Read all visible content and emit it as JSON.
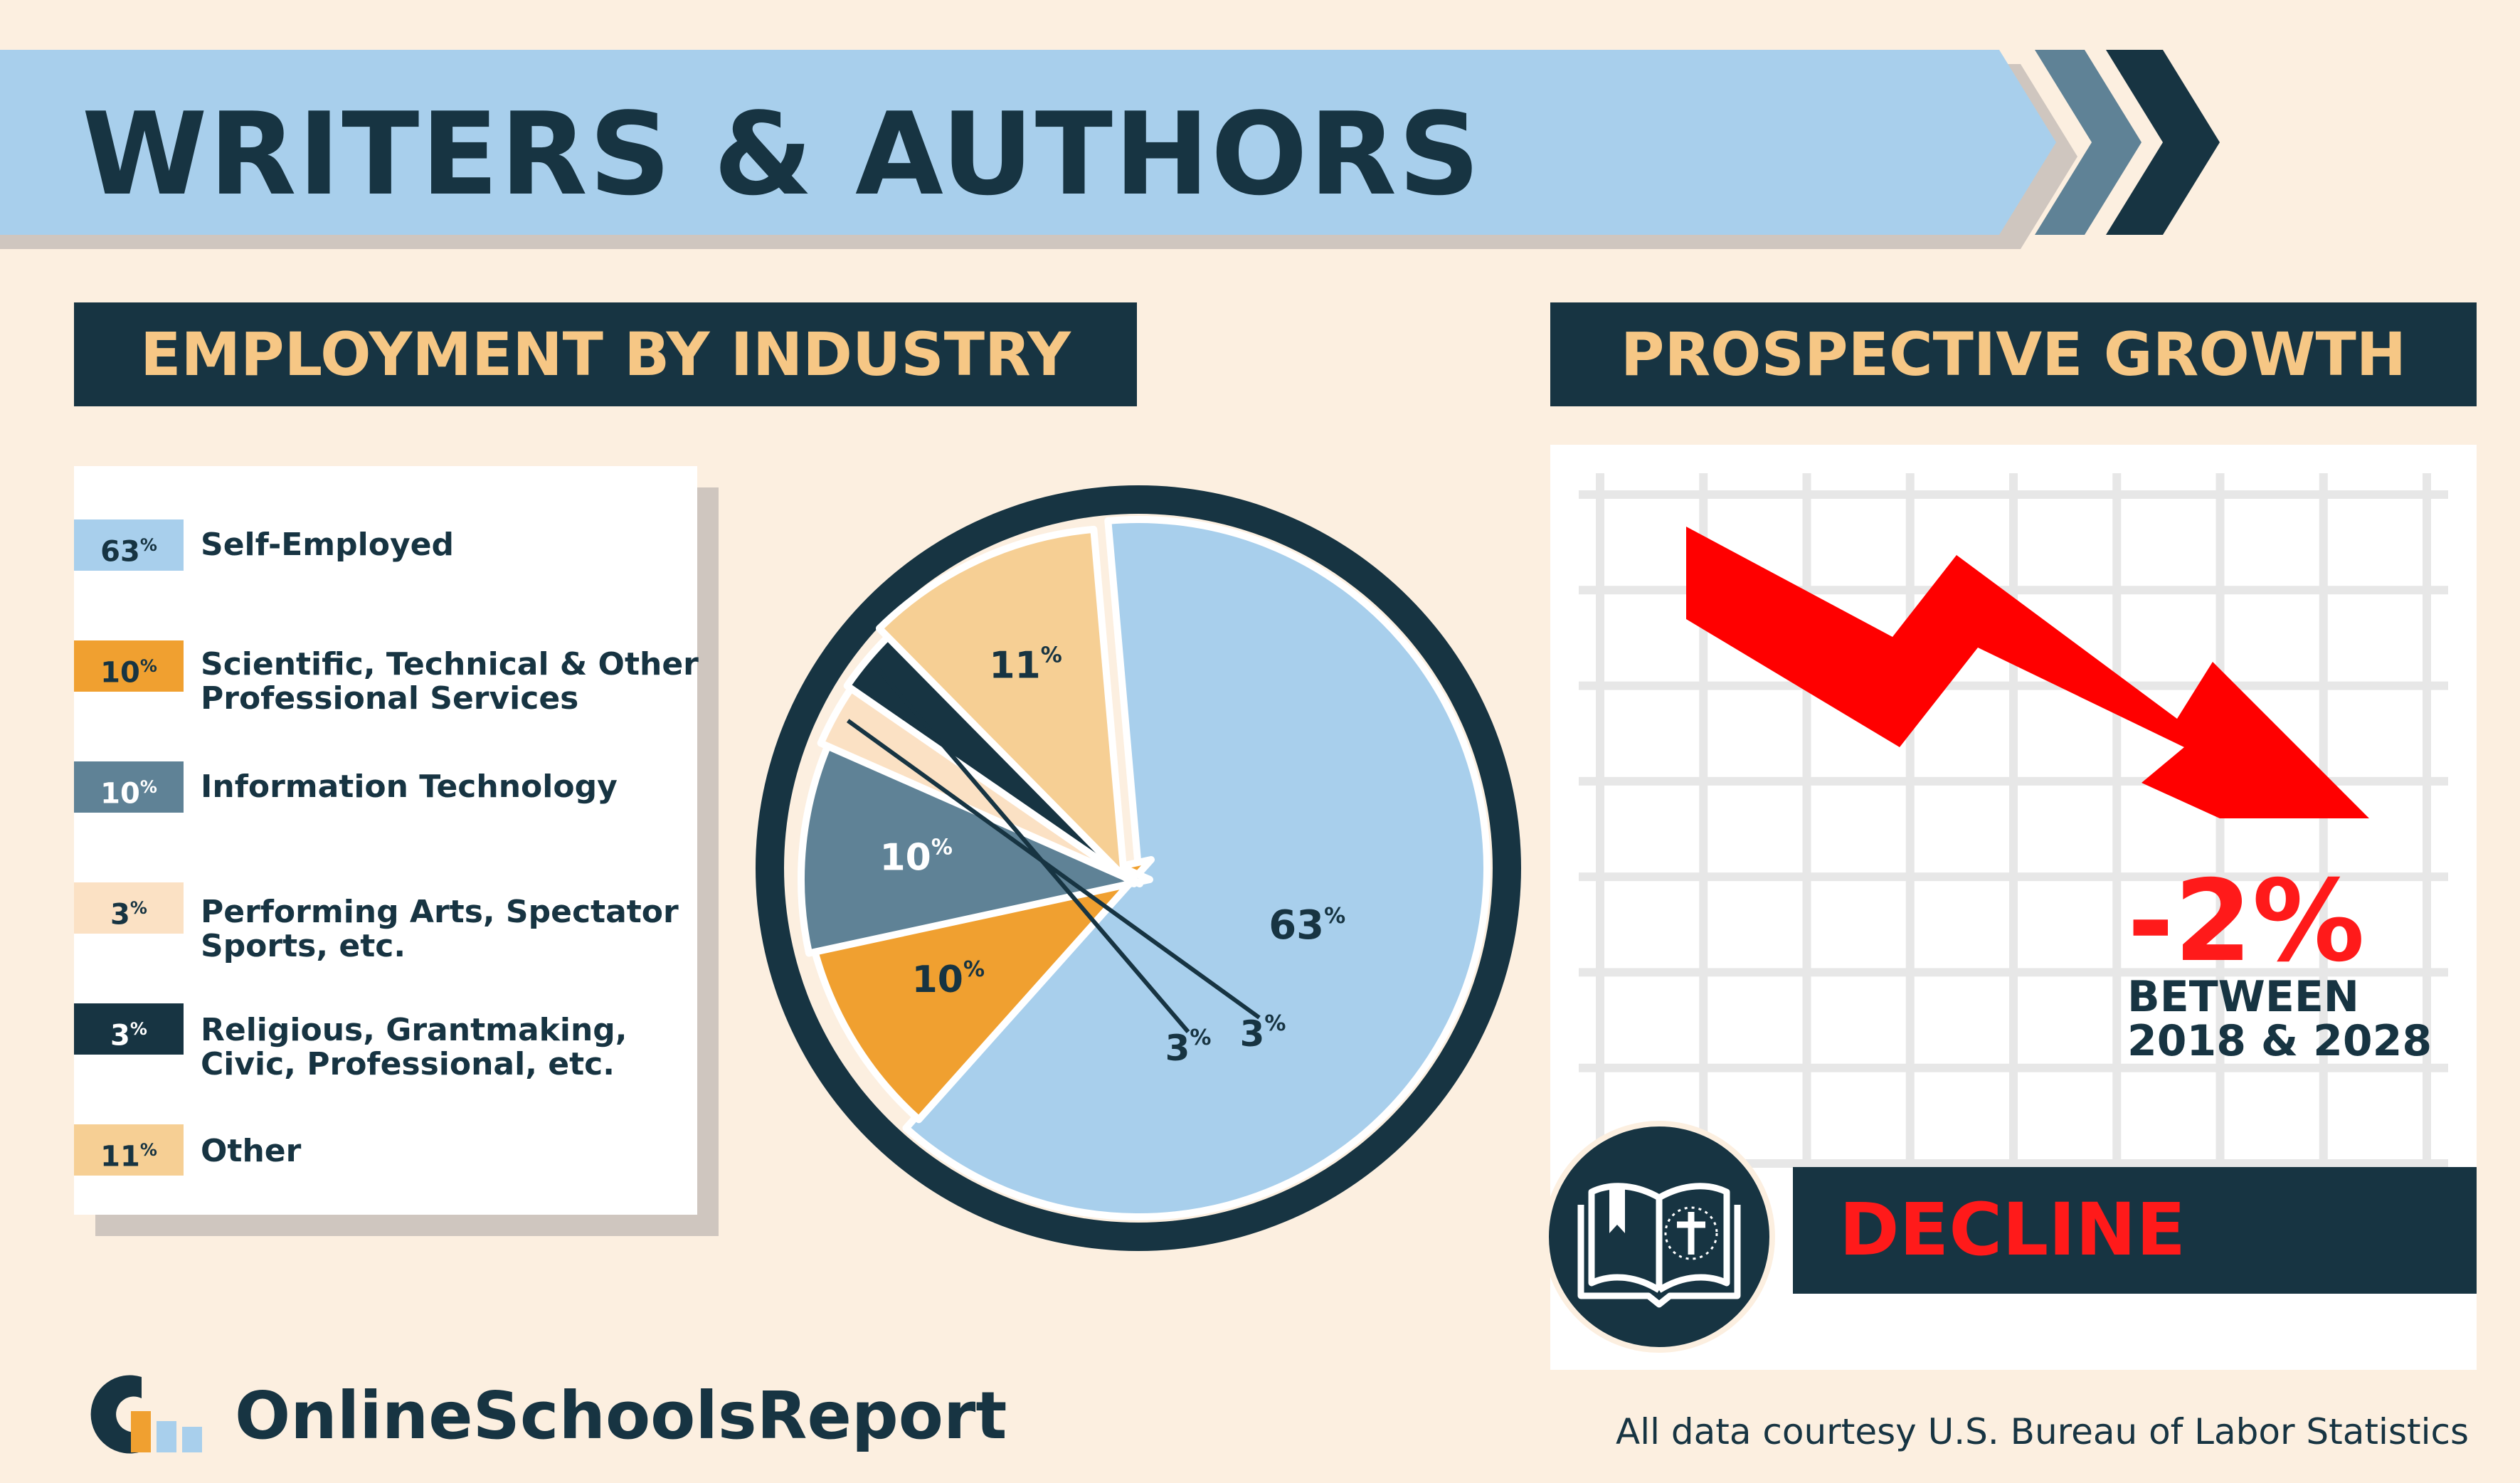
{
  "title": "WRITERS & AUTHORS",
  "industry_header": "EMPLOYMENT BY INDUSTRY",
  "growth_header": "PROSPECTIVE GROWTH",
  "legend": [
    {
      "value": "63",
      "unit": "%",
      "label": "Self-Employed",
      "color": "#a8cfec",
      "text_color": "#173442"
    },
    {
      "value": "10",
      "unit": "%",
      "label": "Scientific, Technical & Other Professional Services",
      "color": "#f0a030",
      "text_color": "#173442"
    },
    {
      "value": "10",
      "unit": "%",
      "label": "Information Technology",
      "color": "#5f8296",
      "text_color": "#ffffff"
    },
    {
      "value": "3",
      "unit": "%",
      "label": "Performing Arts, Spectator Sports, etc.",
      "color": "#fbe1c4",
      "text_color": "#173442"
    },
    {
      "value": "3",
      "unit": "%",
      "label": "Religious, Grantmaking, Civic, Professional, etc.",
      "color": "#173442",
      "text_color": "#ffffff"
    },
    {
      "value": "11",
      "unit": "%",
      "label": "Other",
      "color": "#f6cf94",
      "text_color": "#173442"
    }
  ],
  "chart_data": {
    "type": "pie",
    "slices": [
      {
        "label": "Self-Employed",
        "value": 63,
        "color": "#a8cfec",
        "value_label": "63",
        "unit": "%",
        "text_color": "#173442"
      },
      {
        "label": "Scientific, Technical & Other Professional Services",
        "value": 10,
        "color": "#f0a030",
        "value_label": "10",
        "unit": "%",
        "text_color": "#173442"
      },
      {
        "label": "Information Technology",
        "value": 10,
        "color": "#5f8296",
        "value_label": "10",
        "unit": "%",
        "text_color": "#ffffff"
      },
      {
        "label": "Performing Arts, Spectator Sports, etc.",
        "value": 3,
        "color": "#fbe1c4",
        "value_label": "3",
        "unit": "%",
        "text_color": "#173442"
      },
      {
        "label": "Religious, Grantmaking, Civic, Professional, etc.",
        "value": 3,
        "color": "#173442",
        "value_label": "3",
        "unit": "%",
        "text_color": "#173442"
      },
      {
        "label": "Other",
        "value": 11,
        "color": "#f6cf94",
        "value_label": "11",
        "unit": "%",
        "text_color": "#173442"
      }
    ]
  },
  "growth": {
    "value": "-2%",
    "period": "BETWEEN 2018 & 2028",
    "status": "DECLINE",
    "arrow_color": "#ff0000"
  },
  "brand": "OnlineSchoolsReport",
  "source": "All data courtesy U.S. Bureau of Labor Statistics",
  "colors": {
    "navy": "#173442",
    "banner": "#a8cfec",
    "background": "#fcefe0",
    "accent_red": "#ff1a1a"
  }
}
